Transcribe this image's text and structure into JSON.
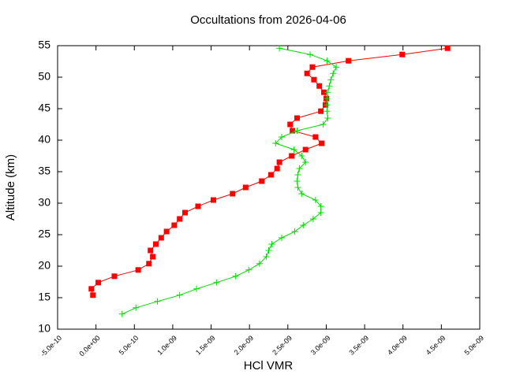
{
  "chart_data": {
    "type": "line",
    "title": "Occultations from 2026-04-06",
    "xlabel": "HCl VMR",
    "ylabel": "Altitude (km)",
    "xlim": [
      -5e-10,
      5e-09
    ],
    "ylim": [
      10,
      55
    ],
    "xticks": [
      {
        "value": -5e-10,
        "label": "-5.0e-10"
      },
      {
        "value": 0,
        "label": "0.0e+00"
      },
      {
        "value": 5e-10,
        "label": "5.0e-10"
      },
      {
        "value": 1e-09,
        "label": "1.0e-09"
      },
      {
        "value": 1.5e-09,
        "label": "1.5e-09"
      },
      {
        "value": 2e-09,
        "label": "2.0e-09"
      },
      {
        "value": 2.5e-09,
        "label": "2.5e-09"
      },
      {
        "value": 3e-09,
        "label": "3.0e-09"
      },
      {
        "value": 3.5e-09,
        "label": "3.5e-09"
      },
      {
        "value": 4e-09,
        "label": "4.0e-09"
      },
      {
        "value": 4.5e-09,
        "label": "4.5e-09"
      },
      {
        "value": 5e-09,
        "label": "5.0e-09"
      }
    ],
    "yticks": [
      10,
      15,
      20,
      25,
      30,
      35,
      40,
      45,
      50,
      55
    ],
    "grid": false,
    "series": [
      {
        "color": "#ff0000",
        "marker": "square",
        "x": [
          4.58e-09,
          3.99e-09,
          3.29e-09,
          2.82e-09,
          2.75e-09,
          2.84e-09,
          2.91e-09,
          2.97e-09,
          3e-09,
          2.99e-09,
          2.93e-09,
          2.62e-09,
          2.53e-09,
          2.56e-09,
          2.86e-09,
          2.94e-09,
          2.73e-09,
          2.55e-09,
          2.39e-09,
          2.36e-09,
          2.28e-09,
          2.16e-09,
          1.95e-09,
          1.78e-09,
          1.53e-09,
          1.33e-09,
          1.16e-09,
          1.09e-09,
          1.02e-09,
          9.2e-10,
          8.5e-10,
          7.8e-10,
          7.1e-10,
          7.4e-10,
          6.9e-10,
          5.5e-10,
          2.4e-10,
          3e-11,
          -6e-11,
          -4e-11
        ],
        "y": [
          54.6,
          53.6,
          52.6,
          51.6,
          50.6,
          49.6,
          48.6,
          47.6,
          46.6,
          45.6,
          44.6,
          43.5,
          42.5,
          41.5,
          40.5,
          39.5,
          38.5,
          37.5,
          36.5,
          35.5,
          34.5,
          33.5,
          32.5,
          31.5,
          30.5,
          29.5,
          28.5,
          27.5,
          26.5,
          25.5,
          24.5,
          23.5,
          22.5,
          21.5,
          20.4,
          19.4,
          18.4,
          17.4,
          16.4,
          15.4
        ]
      },
      {
        "color": "#00dd00",
        "marker": "plus",
        "x": [
          2.39e-09,
          2.79e-09,
          3.01e-09,
          3.13e-09,
          3.09e-09,
          3.06e-09,
          3.04e-09,
          3.02e-09,
          3.01e-09,
          3.01e-09,
          3.01e-09,
          3.02e-09,
          2.96e-09,
          2.62e-09,
          2.42e-09,
          2.34e-09,
          2.58e-09,
          2.68e-09,
          2.73e-09,
          2.65e-09,
          2.63e-09,
          2.62e-09,
          2.63e-09,
          2.68e-09,
          2.86e-09,
          2.93e-09,
          2.93e-09,
          2.83e-09,
          2.7e-09,
          2.59e-09,
          2.42e-09,
          2.29e-09,
          2.25e-09,
          2.22e-09,
          2.13e-09,
          1.99e-09,
          1.82e-09,
          1.57e-09,
          1.31e-09,
          1.09e-09,
          8e-10,
          5.2e-10,
          3.4e-10
        ],
        "y": [
          54.6,
          53.6,
          52.6,
          51.6,
          50.6,
          49.6,
          48.6,
          47.6,
          46.6,
          45.6,
          44.6,
          43.5,
          42.5,
          41.5,
          40.5,
          39.5,
          38.5,
          37.5,
          36.5,
          35.5,
          34.5,
          33.5,
          32.5,
          31.5,
          30.5,
          29.5,
          28.5,
          27.5,
          26.5,
          25.5,
          24.5,
          23.5,
          22.5,
          21.5,
          20.4,
          19.4,
          18.4,
          17.4,
          16.4,
          15.4,
          14.4,
          13.4,
          12.4
        ]
      }
    ]
  }
}
